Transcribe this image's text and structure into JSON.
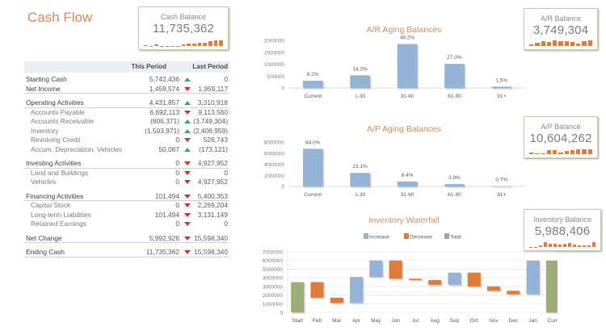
{
  "header": {
    "title": "Cash Flow"
  },
  "kpis": {
    "cash": {
      "label": "Cash Balance",
      "value": "11,735,362",
      "spark": [
        0.1,
        0.05,
        0.2,
        0.05,
        0.05,
        0.05,
        0.05,
        0.3,
        0.35,
        0.4,
        0.45,
        0.5,
        0.8,
        0.85,
        0.9
      ]
    },
    "ar": {
      "label": "A/R Balance",
      "value": "3,749,304",
      "spark": [
        0.2,
        0.5,
        0.7,
        0.6,
        0.9,
        0.8,
        0.7,
        0.6,
        0.4,
        0.8,
        0.9
      ]
    },
    "ap": {
      "label": "A/P Balance",
      "value": "10,604,262",
      "spark": [
        0.3,
        0.1,
        0.1,
        0.6,
        0.6,
        0.3,
        0.5,
        0.6,
        0.8,
        0.7,
        0.8
      ]
    },
    "inv": {
      "label": "Inventory Balance",
      "value": "5,988,406",
      "spark": [
        0.05,
        0.05,
        0.3,
        0.7,
        0.5,
        0.5,
        0.4,
        0.5,
        0.6,
        0.4,
        0.3,
        0.2,
        0.2,
        0.7
      ]
    }
  },
  "table": {
    "col_this": "This Period",
    "col_last": "Last Period",
    "rows": [
      {
        "label": "Starting Cash",
        "this": "5,742,436",
        "trend": "up",
        "last": "0",
        "type": "main",
        "border": false
      },
      {
        "label": "Net Income",
        "this": "1,459,574",
        "trend": "down",
        "last": "1,959,117",
        "type": "main",
        "border": true
      },
      {
        "gap": true
      },
      {
        "label": "Operating Activities",
        "this": "4,431,857",
        "trend": "up",
        "last": "3,310,918",
        "type": "main",
        "border": true
      },
      {
        "label": "Accounts Payable",
        "this": "6,692,113",
        "trend": "down",
        "last": "9,113,560",
        "type": "sub",
        "border": false
      },
      {
        "label": "Accounts Receivable",
        "this": "(806,371)",
        "trend": "up",
        "last": "(3,749,304)",
        "type": "sub",
        "border": false
      },
      {
        "label": "Inventory",
        "this": "(1,503,971)",
        "trend": "up",
        "last": "(2,406,959)",
        "type": "sub",
        "border": false
      },
      {
        "label": "Revolving Credit",
        "this": "0",
        "trend": "down",
        "last": "526,743",
        "type": "sub",
        "border": false
      },
      {
        "label": "Accum. Depreciation, Vehicles",
        "this": "50,087",
        "trend": "up",
        "last": "(173,121)",
        "type": "sub",
        "border": false
      },
      {
        "gap": true
      },
      {
        "label": "Investing Activities",
        "this": "0",
        "trend": "down",
        "last": "4,927,952",
        "type": "main",
        "border": true
      },
      {
        "label": "Land and Buildings",
        "this": "0",
        "trend": "down",
        "last": "0",
        "type": "sub",
        "border": false
      },
      {
        "label": "Vehicles",
        "this": "0",
        "trend": "down",
        "last": "4,927,952",
        "type": "sub",
        "border": false
      },
      {
        "gap": true
      },
      {
        "label": "Financing Activities",
        "this": "101,494",
        "trend": "down",
        "last": "5,400,353",
        "type": "main",
        "border": true
      },
      {
        "label": "Capital Stock",
        "this": "0",
        "trend": "down",
        "last": "2,269,204",
        "type": "sub",
        "border": false
      },
      {
        "label": "Long-term Liabilities",
        "this": "101,494",
        "trend": "down",
        "last": "3,131,149",
        "type": "sub",
        "border": false
      },
      {
        "label": "Retained Earnings",
        "this": "0",
        "trend": "down",
        "last": "0",
        "type": "sub",
        "border": false
      },
      {
        "gap": true
      },
      {
        "label": "Net Change",
        "this": "5,992,926",
        "trend": "down",
        "last": "15,598,340",
        "type": "main",
        "border": true
      },
      {
        "gap": true
      },
      {
        "label": "Ending Cash",
        "this": "11,735,362",
        "trend": "down",
        "last": "15,598,340",
        "type": "main",
        "border": true
      }
    ]
  },
  "colors": {
    "bar_blue": "#95b3d7",
    "decrease": "#e07b39",
    "total": "#9bae79",
    "title_orange": "#d08a5e",
    "up": "#3f9e7e",
    "down": "#c0392b"
  },
  "chart_data": [
    {
      "type": "bar",
      "title": "A/R Aging Balances",
      "categories": [
        "Current",
        "1-30",
        "31-60",
        "61-90",
        "91+"
      ],
      "values": [
        307000,
        532000,
        1845000,
        1012000,
        56000
      ],
      "data_labels": [
        "8.2%",
        "14.2%",
        "49.2%",
        "27.0%",
        "1.5%"
      ],
      "yticks": [
        "0",
        "500000",
        "1000000",
        "1500000",
        "2000000"
      ],
      "ylim": [
        0,
        2000000
      ]
    },
    {
      "type": "bar",
      "title": "A/P Aging Balances",
      "categories": [
        "Current",
        "1-30",
        "31-60",
        "61-90",
        "91+"
      ],
      "values": [
        6787000,
        2450000,
        891000,
        414000,
        74000
      ],
      "data_labels": [
        "64.0%",
        "23.1%",
        "8.4%",
        "3.9%",
        "0.7%"
      ],
      "yticks": [
        "0",
        "2000000",
        "4000000",
        "6000000",
        "8000000"
      ],
      "ylim": [
        0,
        8000000
      ]
    },
    {
      "type": "bar",
      "title": "Inventory Waterfall",
      "legend": [
        "Increase",
        "Decrease",
        "Total"
      ],
      "legend_position": "top",
      "categories": [
        "Start",
        "Feb",
        "Mar",
        "Apr",
        "May",
        "Jun",
        "Jul",
        "Aug",
        "Sep",
        "Oct",
        "Nov",
        "Dec",
        "Jan",
        "Curr"
      ],
      "series": [
        {
          "name": "Start",
          "kind": "total",
          "low": 0,
          "high": 3500000
        },
        {
          "name": "Feb",
          "kind": "decrease",
          "low": 1700000,
          "high": 3500000
        },
        {
          "name": "Mar",
          "kind": "decrease",
          "low": 1100000,
          "high": 1700000
        },
        {
          "name": "Apr",
          "kind": "increase",
          "low": 1100000,
          "high": 4100000
        },
        {
          "name": "May",
          "kind": "increase",
          "low": 4100000,
          "high": 6000000
        },
        {
          "name": "Jun",
          "kind": "decrease",
          "low": 3900000,
          "high": 6000000
        },
        {
          "name": "Jul",
          "kind": "decrease",
          "low": 3750000,
          "high": 3900000
        },
        {
          "name": "Aug",
          "kind": "decrease",
          "low": 3200000,
          "high": 3750000
        },
        {
          "name": "Sep",
          "kind": "increase",
          "low": 3200000,
          "high": 4600000
        },
        {
          "name": "Oct",
          "kind": "decrease",
          "low": 3000000,
          "high": 4600000
        },
        {
          "name": "Nov",
          "kind": "decrease",
          "low": 2500000,
          "high": 3000000
        },
        {
          "name": "Dec",
          "kind": "decrease",
          "low": 2100000,
          "high": 2500000
        },
        {
          "name": "Jan",
          "kind": "increase",
          "low": 2100000,
          "high": 6000000
        },
        {
          "name": "Curr",
          "kind": "total",
          "low": 0,
          "high": 5988406
        }
      ],
      "yticks": [
        "0",
        "1000000",
        "2000000",
        "3000000",
        "4000000",
        "5000000",
        "6000000",
        "7000000"
      ],
      "ylim": [
        0,
        7000000
      ]
    }
  ]
}
